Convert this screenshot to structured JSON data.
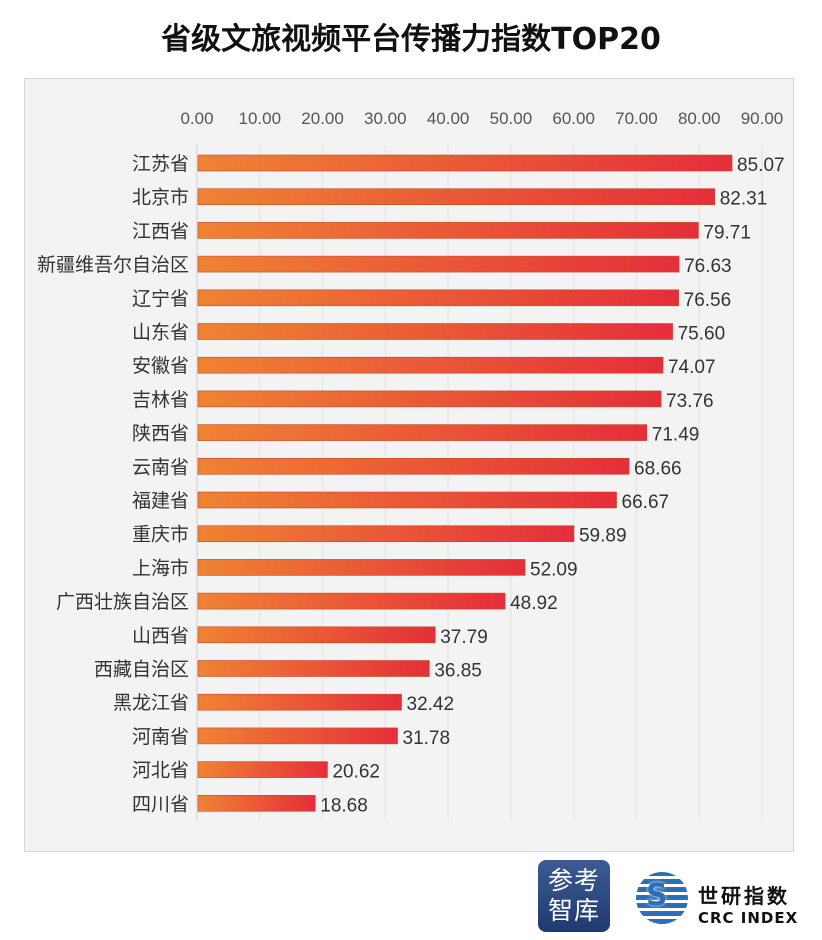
{
  "chart_data": {
    "type": "bar",
    "orientation": "horizontal",
    "title": "省级文旅视频平台传播力指数TOP20",
    "categories": [
      "江苏省",
      "北京市",
      "江西省",
      "新疆维吾尔自治区",
      "辽宁省",
      "山东省",
      "安徽省",
      "吉林省",
      "陕西省",
      "云南省",
      "福建省",
      "重庆市",
      "上海市",
      "广西壮族自治区",
      "山西省",
      "西藏自治区",
      "黑龙江省",
      "河南省",
      "河北省",
      "四川省"
    ],
    "values": [
      85.07,
      82.31,
      79.71,
      76.63,
      76.56,
      75.6,
      74.07,
      73.76,
      71.49,
      68.66,
      66.67,
      59.89,
      52.09,
      48.92,
      37.79,
      36.85,
      32.42,
      31.78,
      20.62,
      18.68
    ],
    "xticks": [
      "0.00",
      "10.00",
      "20.00",
      "30.00",
      "40.00",
      "50.00",
      "60.00",
      "70.00",
      "80.00",
      "90.00"
    ],
    "xlim": [
      0,
      90
    ],
    "xaxis_position": "top",
    "grid": true,
    "colors": {
      "bar_start": "#ef8333",
      "bar_end": "#e52e3a"
    }
  },
  "logos": {
    "thinktank": "参考智库",
    "crc_cn": "世研指数",
    "crc_en": "CRC INDEX"
  }
}
